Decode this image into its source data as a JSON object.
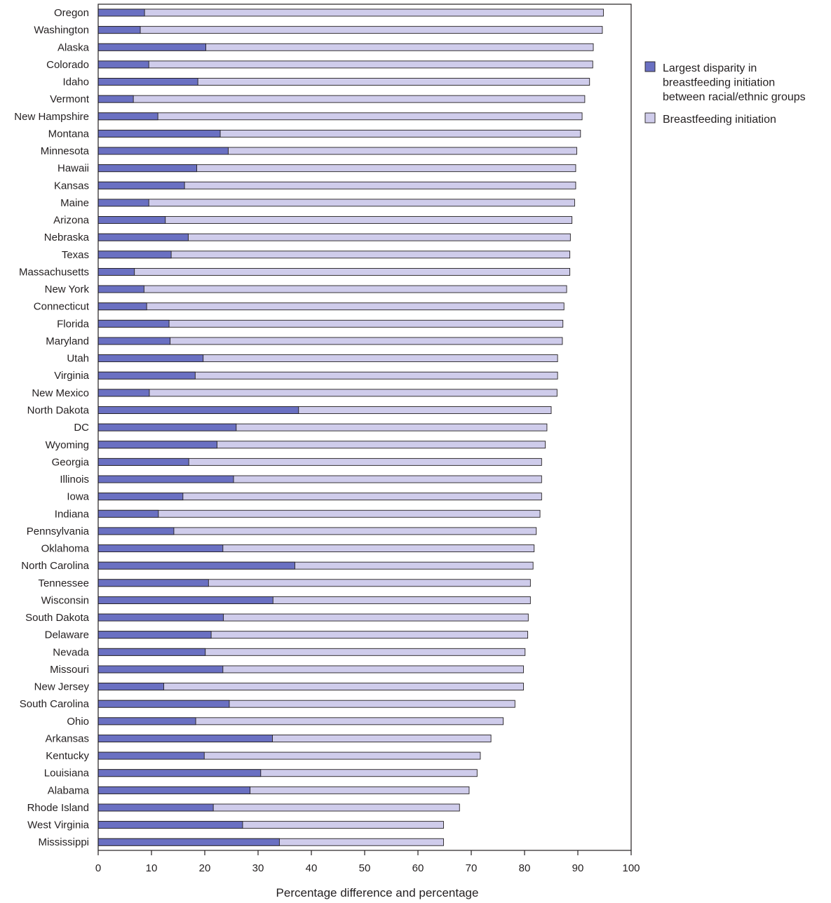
{
  "chart_data": {
    "type": "bar",
    "orientation": "horizontal",
    "title": "",
    "xlabel": "Percentage difference and percentage",
    "ylabel": "",
    "xlim": [
      0,
      100
    ],
    "xticks": [
      0,
      10,
      20,
      30,
      40,
      50,
      60,
      70,
      80,
      90,
      100
    ],
    "grid": false,
    "legend_position": "right",
    "categories": [
      "Oregon",
      "Washington",
      "Alaska",
      "Colorado",
      "Idaho",
      "Vermont",
      "New Hampshire",
      "Montana",
      "Minnesota",
      "Hawaii",
      "Kansas",
      "Maine",
      "Arizona",
      "Nebraska",
      "Texas",
      "Massachusetts",
      "New York",
      "Connecticut",
      "Florida",
      "Maryland",
      "Utah",
      "Virginia",
      "New Mexico",
      "North Dakota",
      "DC",
      "Wyoming",
      "Georgia",
      "Illinois",
      "Iowa",
      "Indiana",
      "Pennsylvania",
      "Oklahoma",
      "North Carolina",
      "Tennessee",
      "Wisconsin",
      "South Dakota",
      "Delaware",
      "Nevada",
      "Missouri",
      "New Jersey",
      "South Carolina",
      "Ohio",
      "Arkansas",
      "Kentucky",
      "Louisiana",
      "Alabama",
      "Rhode Island",
      "West Virginia",
      "Mississippi"
    ],
    "series": [
      {
        "name": "Breastfeeding initiation",
        "color": "#cfcceb",
        "values": [
          94.8,
          94.6,
          92.9,
          92.8,
          92.2,
          91.3,
          90.8,
          90.5,
          89.8,
          89.6,
          89.6,
          89.4,
          88.9,
          88.6,
          88.5,
          88.5,
          87.9,
          87.4,
          87.2,
          87.1,
          86.2,
          86.2,
          86.1,
          85.0,
          84.2,
          83.9,
          83.2,
          83.2,
          83.2,
          82.9,
          82.2,
          81.8,
          81.6,
          81.1,
          81.1,
          80.7,
          80.6,
          80.1,
          79.8,
          79.8,
          78.2,
          76.0,
          73.7,
          71.7,
          71.1,
          69.6,
          67.8,
          64.8,
          64.8
        ]
      },
      {
        "name": "Largest disparity in breastfeeding initiation between racial/ethnic groups",
        "color": "#6a70c2",
        "values": [
          8.7,
          7.9,
          20.2,
          9.5,
          18.7,
          6.6,
          11.2,
          22.9,
          24.4,
          18.5,
          16.2,
          9.5,
          12.6,
          16.9,
          13.7,
          6.8,
          8.6,
          9.1,
          13.3,
          13.5,
          19.7,
          18.2,
          9.6,
          37.6,
          25.9,
          22.3,
          17.0,
          25.4,
          15.9,
          11.3,
          14.2,
          23.4,
          36.9,
          20.7,
          32.8,
          23.5,
          21.2,
          20.1,
          23.4,
          12.3,
          24.6,
          18.3,
          32.7,
          19.9,
          30.5,
          28.5,
          21.6,
          27.1,
          34.0
        ]
      }
    ],
    "legend": [
      {
        "label_lines": [
          "Largest disparity in",
          "breastfeeding initiation",
          "between racial/ethnic groups"
        ],
        "color": "#6a70c2"
      },
      {
        "label_lines": [
          "Breastfeeding initiation"
        ],
        "color": "#cfcceb"
      }
    ]
  }
}
